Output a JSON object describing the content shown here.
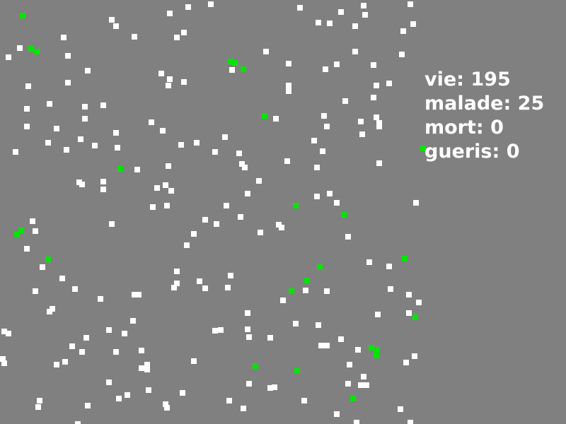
{
  "stats": {
    "vie_label": "vie:",
    "vie_value": "195",
    "malade_label": "malade:",
    "malade_value": "25",
    "mort_label": "mort:",
    "mort_value": "0",
    "gueris_label": "gueris:",
    "gueris_value": "0"
  },
  "colors": {
    "background": "#808080",
    "healthy": "#ffffff",
    "sick": "#00e600",
    "text": "#ffffff"
  }
}
